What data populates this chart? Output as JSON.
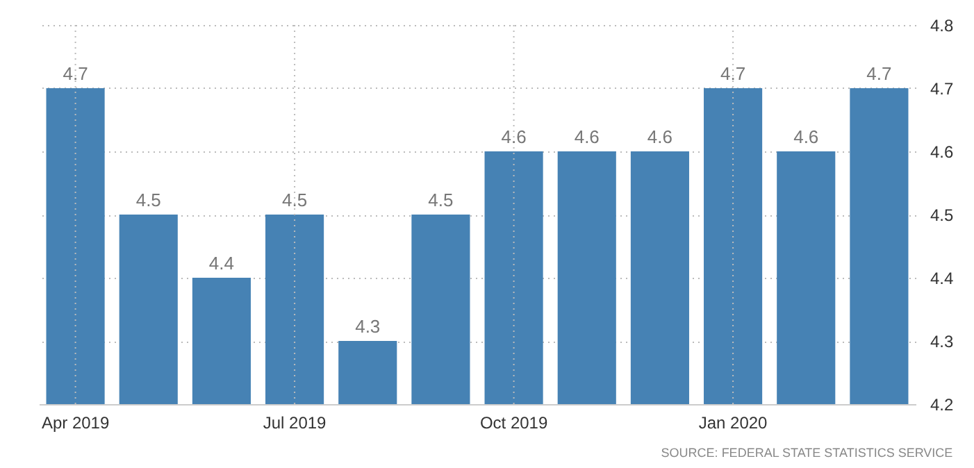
{
  "chart_data": {
    "type": "bar",
    "categories": [
      "Apr 2019",
      null,
      null,
      "Jul 2019",
      null,
      null,
      "Oct 2019",
      null,
      null,
      "Jan 2020",
      null,
      null
    ],
    "values": [
      4.7,
      4.5,
      4.4,
      4.5,
      4.3,
      4.5,
      4.6,
      4.6,
      4.6,
      4.7,
      4.6,
      4.7
    ],
    "color": "#4682b4",
    "ylim": [
      4.2,
      4.8
    ],
    "yticks": [
      4.2,
      4.3,
      4.4,
      4.5,
      4.6,
      4.7,
      4.8
    ],
    "grid": true,
    "data_labels": true,
    "annotations": [
      "SOURCE: FEDERAL STATE STATISTICS SERVICE"
    ]
  }
}
